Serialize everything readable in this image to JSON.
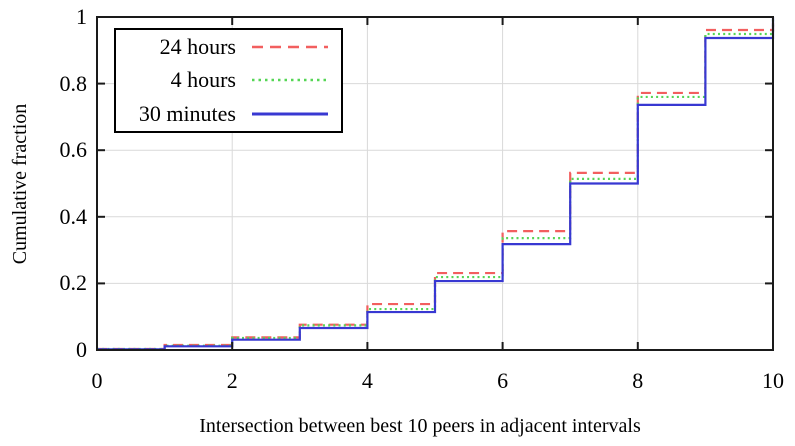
{
  "chart_data": {
    "type": "line",
    "subtype": "step-cdf",
    "title": "",
    "xlabel": "Intersection between best 10 peers in adjacent intervals",
    "ylabel": "Cumulative fraction",
    "xlim": [
      0,
      10
    ],
    "ylim": [
      0,
      1
    ],
    "xticks": [
      "0",
      "2",
      "4",
      "6",
      "8",
      "10"
    ],
    "yticks": [
      "0",
      "0.2",
      "0.4",
      "0.6",
      "0.8",
      "1"
    ],
    "grid": true,
    "legend_position": "top-left",
    "bin_edges": [
      0,
      1,
      2,
      3,
      4,
      5,
      6,
      7,
      8,
      9,
      10
    ],
    "series": [
      {
        "name": "24 hours",
        "color": "#f25f5f",
        "line_style": "dashed",
        "cumulative_levels": [
          0.003,
          0.015,
          0.038,
          0.076,
          0.138,
          0.231,
          0.357,
          0.532,
          0.772,
          0.961
        ],
        "value_at_xmax": 1.0
      },
      {
        "name": "4 hours",
        "color": "#55d655",
        "line_style": "dotted",
        "cumulative_levels": [
          0.003,
          0.013,
          0.036,
          0.074,
          0.123,
          0.219,
          0.336,
          0.514,
          0.76,
          0.949
        ],
        "value_at_xmax": 1.0
      },
      {
        "name": "30 minutes",
        "color": "#3838d2",
        "line_style": "solid",
        "cumulative_levels": [
          0.002,
          0.011,
          0.031,
          0.066,
          0.114,
          0.207,
          0.318,
          0.5,
          0.736,
          0.937
        ],
        "value_at_xmax": 1.0
      }
    ],
    "colors": {
      "border": "#1a1a1a",
      "grid": "#d9d9d9",
      "background": "#ffffff",
      "text": "#000000"
    }
  }
}
